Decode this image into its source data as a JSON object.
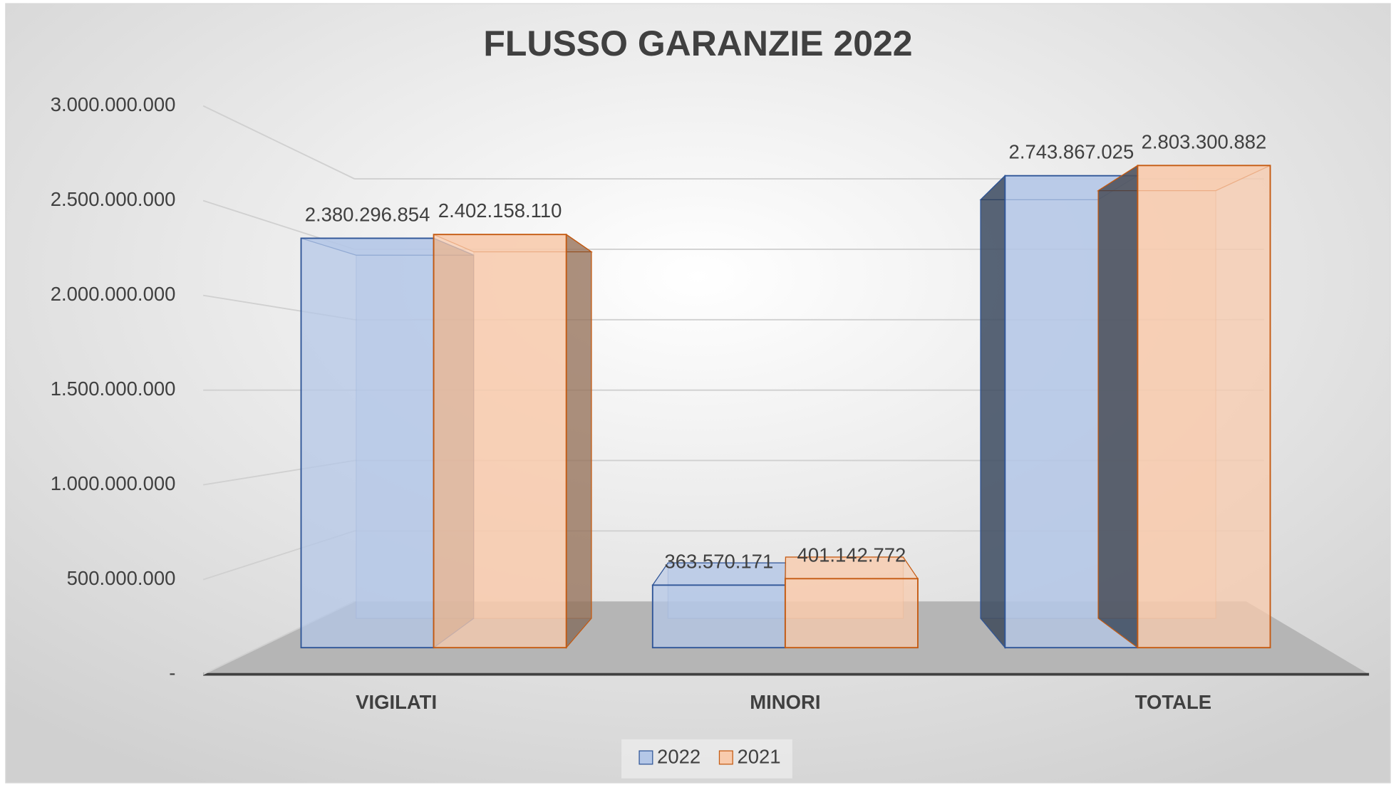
{
  "chart_data": {
    "type": "bar3d",
    "title": "FLUSSO GARANZIE 2022",
    "categories": [
      "VIGILATI",
      "MINORI",
      "TOTALE"
    ],
    "series": [
      {
        "name": "2022",
        "color": "#b4c7e7",
        "stroke": "#2f5597",
        "values": [
          2380296854,
          363570171,
          2743867025
        ],
        "value_labels": [
          "2.380.296.854",
          "363.570.171",
          "2.743.867.025"
        ]
      },
      {
        "name": "2021",
        "color": "#f8cbad",
        "stroke": "#c55a11",
        "values": [
          2402158110,
          401142772,
          2803300882
        ],
        "value_labels": [
          "2.402.158.110",
          "401.142.772",
          "2.803.300.882"
        ]
      }
    ],
    "ylim": [
      0,
      3000000000
    ],
    "yticks": [
      {
        "value": 0,
        "label": "-"
      },
      {
        "value": 500000000,
        "label": "500.000.000"
      },
      {
        "value": 1000000000,
        "label": "1.000.000.000"
      },
      {
        "value": 1500000000,
        "label": "1.500.000.000"
      },
      {
        "value": 2000000000,
        "label": "2.000.000.000"
      },
      {
        "value": 2500000000,
        "label": "2.500.000.000"
      },
      {
        "value": 3000000000,
        "label": "3.000.000.000"
      }
    ],
    "grid": true,
    "legend": "bottom"
  }
}
